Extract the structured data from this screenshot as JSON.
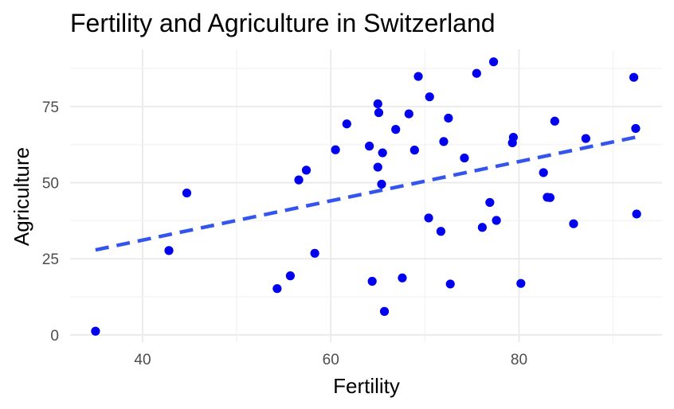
{
  "chart_data": {
    "type": "scatter",
    "title": "Fertility and Agriculture in Switzerland",
    "xlabel": "Fertility",
    "ylabel": "Agriculture",
    "xlim": [
      32.3,
      95.2
    ],
    "ylim": [
      -2.4,
      93.8
    ],
    "xticks": [
      40,
      60,
      80
    ],
    "yticks": [
      0,
      25,
      50,
      75
    ],
    "grid": true,
    "point_color": "#0000ee",
    "trend_color": "#3355ee",
    "points": [
      {
        "x": 35.0,
        "y": 1.2
      },
      {
        "x": 42.8,
        "y": 27.7
      },
      {
        "x": 44.7,
        "y": 46.6
      },
      {
        "x": 54.3,
        "y": 15.2
      },
      {
        "x": 55.7,
        "y": 19.4
      },
      {
        "x": 56.6,
        "y": 50.9
      },
      {
        "x": 57.4,
        "y": 54.1
      },
      {
        "x": 58.3,
        "y": 26.8
      },
      {
        "x": 60.5,
        "y": 60.8
      },
      {
        "x": 61.7,
        "y": 69.3
      },
      {
        "x": 64.1,
        "y": 62.0
      },
      {
        "x": 64.4,
        "y": 17.6
      },
      {
        "x": 65.0,
        "y": 75.9
      },
      {
        "x": 65.0,
        "y": 55.1
      },
      {
        "x": 65.1,
        "y": 73.0
      },
      {
        "x": 65.4,
        "y": 49.5
      },
      {
        "x": 65.5,
        "y": 59.8
      },
      {
        "x": 65.7,
        "y": 7.7
      },
      {
        "x": 66.9,
        "y": 67.5
      },
      {
        "x": 67.6,
        "y": 18.7
      },
      {
        "x": 68.3,
        "y": 72.6
      },
      {
        "x": 68.9,
        "y": 60.7
      },
      {
        "x": 69.3,
        "y": 84.9
      },
      {
        "x": 70.4,
        "y": 38.4
      },
      {
        "x": 70.5,
        "y": 78.2
      },
      {
        "x": 71.7,
        "y": 34.0
      },
      {
        "x": 72.0,
        "y": 63.5
      },
      {
        "x": 72.5,
        "y": 71.2
      },
      {
        "x": 72.7,
        "y": 16.7
      },
      {
        "x": 74.2,
        "y": 58.1
      },
      {
        "x": 75.5,
        "y": 85.9
      },
      {
        "x": 76.1,
        "y": 35.3
      },
      {
        "x": 76.9,
        "y": 43.5
      },
      {
        "x": 77.3,
        "y": 89.7
      },
      {
        "x": 77.6,
        "y": 37.6
      },
      {
        "x": 79.3,
        "y": 63.1
      },
      {
        "x": 79.4,
        "y": 64.9
      },
      {
        "x": 80.2,
        "y": 16.9
      },
      {
        "x": 82.6,
        "y": 53.3
      },
      {
        "x": 83.0,
        "y": 45.2
      },
      {
        "x": 83.3,
        "y": 45.1
      },
      {
        "x": 83.8,
        "y": 70.2
      },
      {
        "x": 85.8,
        "y": 36.5
      },
      {
        "x": 87.1,
        "y": 64.5
      },
      {
        "x": 92.2,
        "y": 84.6
      },
      {
        "x": 92.4,
        "y": 67.8
      },
      {
        "x": 92.5,
        "y": 39.7
      }
    ],
    "trend_line": {
      "style": "dashed",
      "x": [
        35.0,
        92.5
      ],
      "y": [
        27.9,
        65.0
      ]
    }
  }
}
